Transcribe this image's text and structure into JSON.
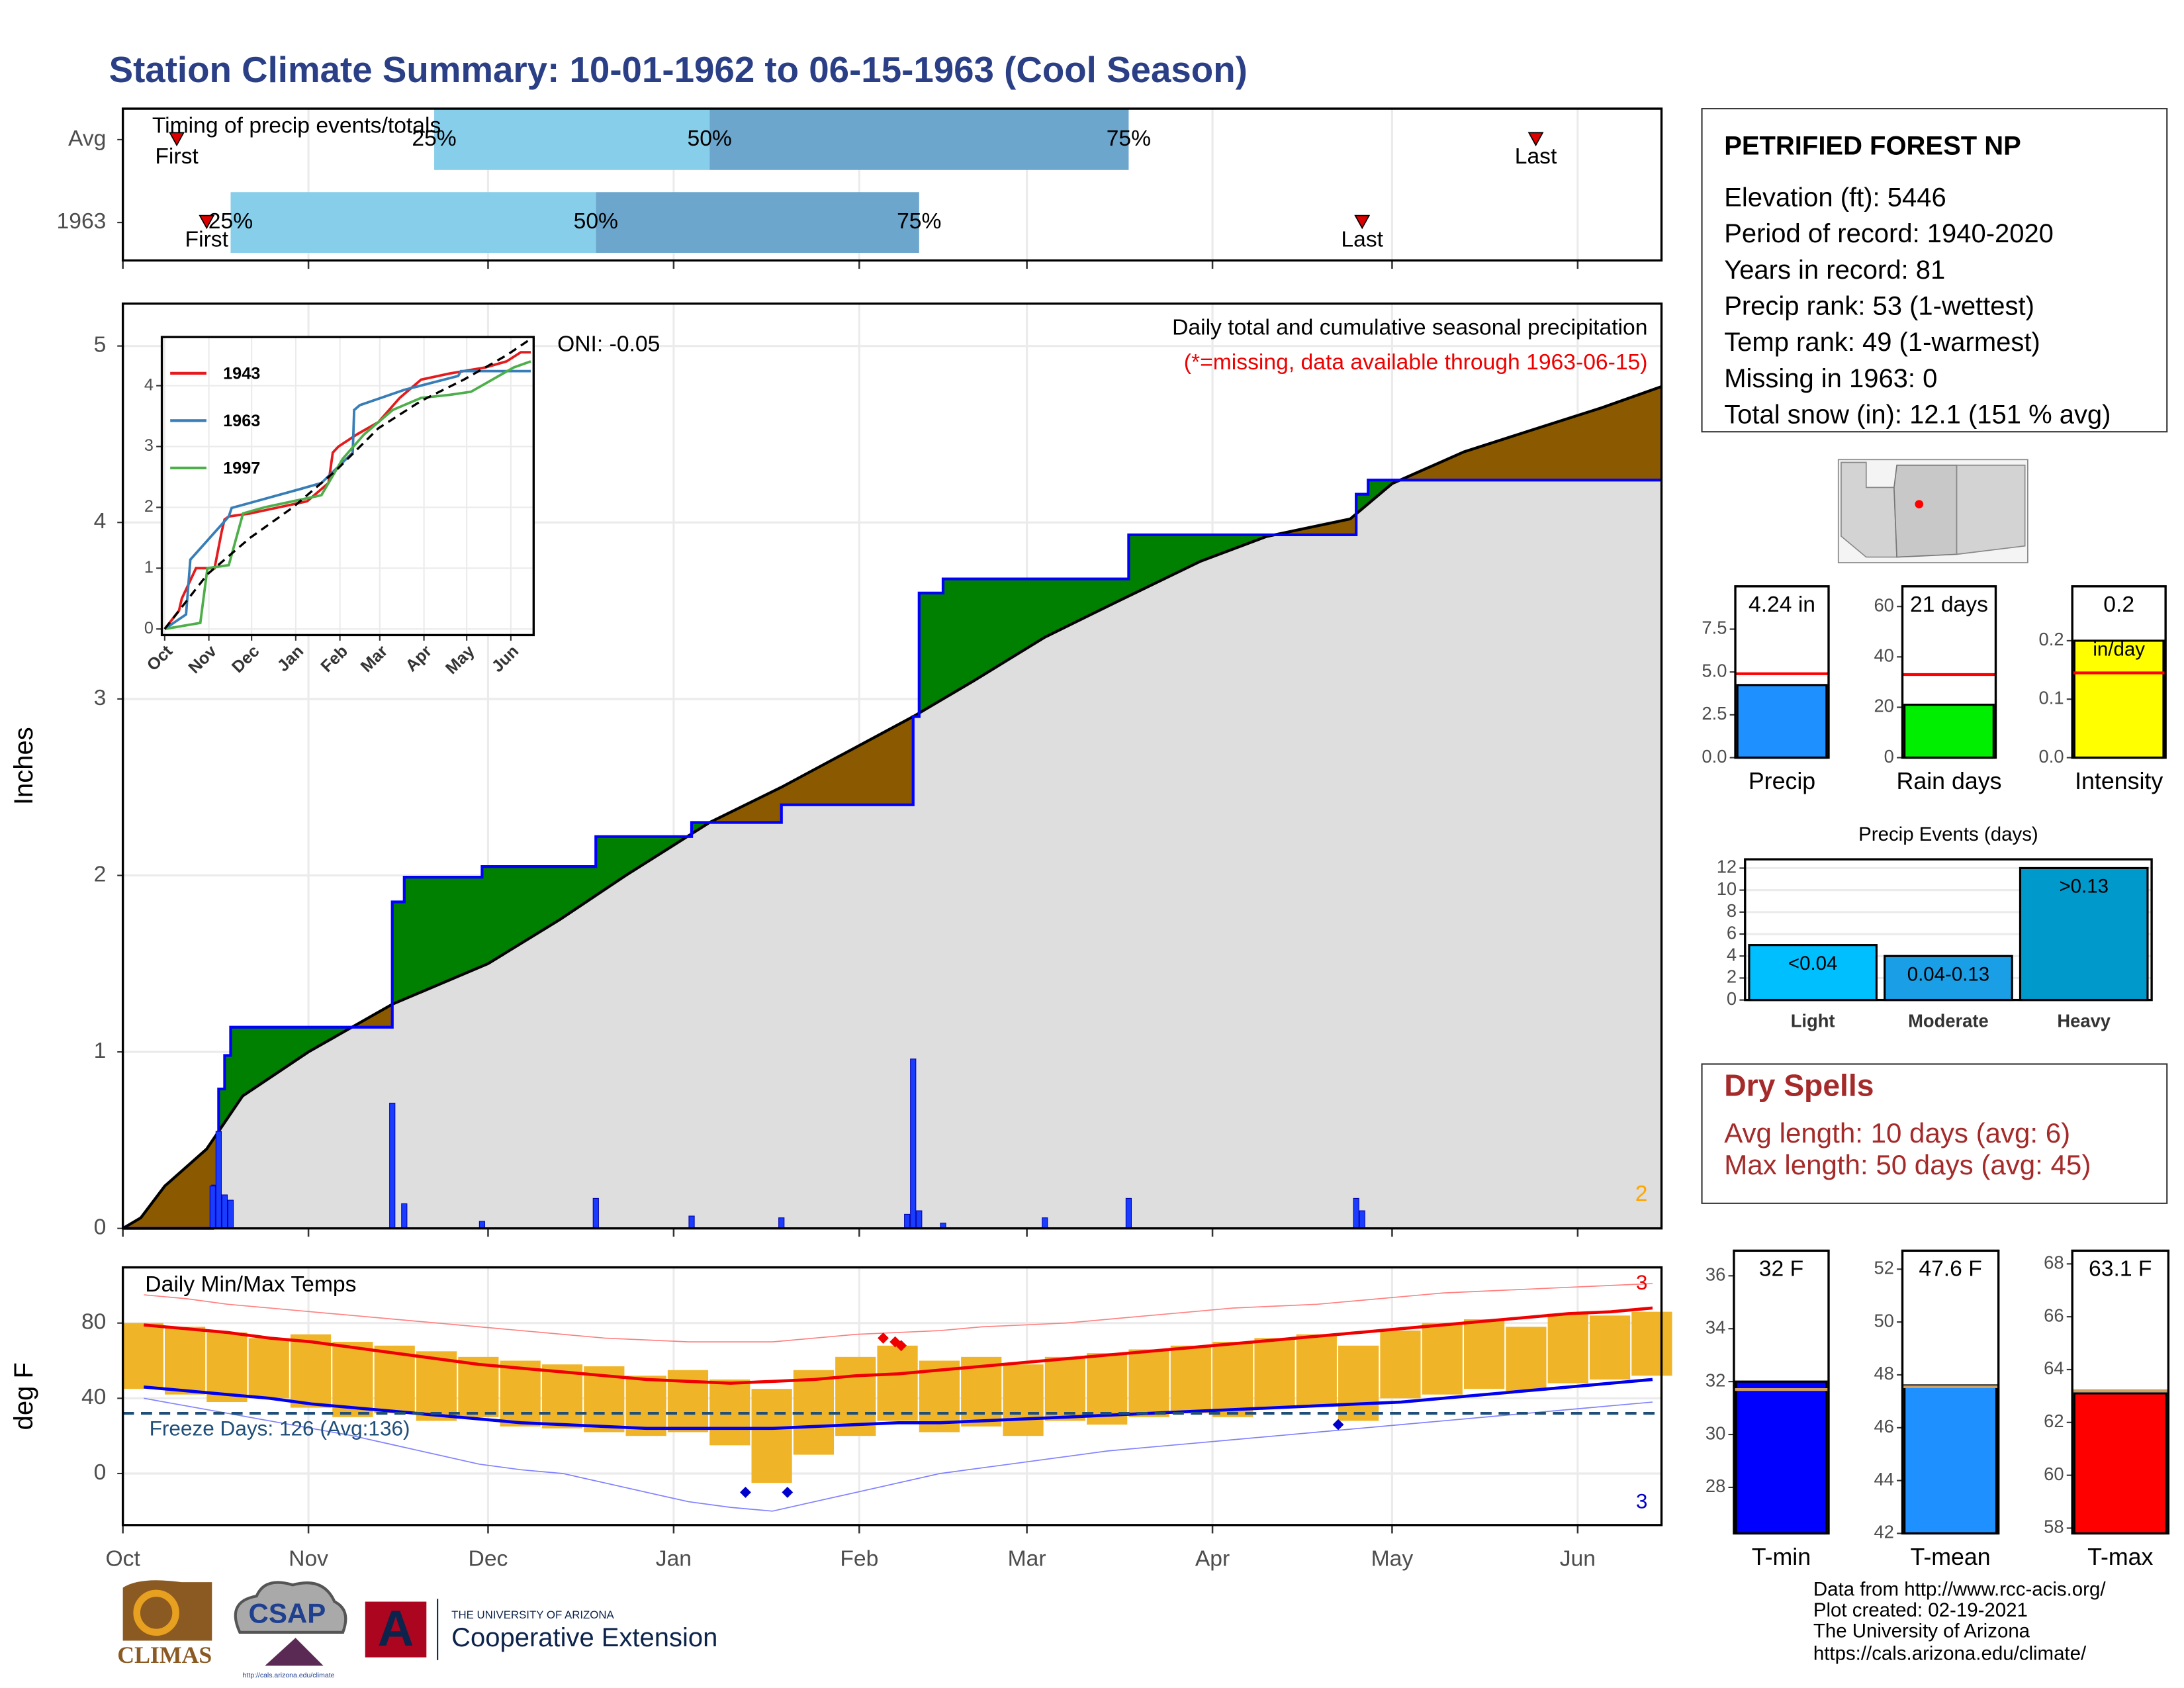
{
  "title": "Station Climate Summary: 10-01-1962 to 06-15-1963 (Cool Season)",
  "station": {
    "name": "PETRIFIED FOREST NP",
    "lines": [
      "Elevation (ft): 5446",
      "Period of record: 1940-2020",
      "Years in record: 81",
      "Precip rank: 53 (1-wettest)",
      "Temp rank: 49 (1-warmest)",
      "Missing in 1963: 0",
      "Total snow (in): 12.1 (151 % avg)"
    ]
  },
  "dry_spells": {
    "title": "Dry Spells",
    "lines": [
      "Avg length: 10 days (avg: 6)",
      "Max length: 50 days (avg: 45)"
    ]
  },
  "footer": {
    "lines": [
      "Data from http://www.rcc-acis.org/",
      "Plot created: 02-19-2021",
      "The University of Arizona",
      "https://cals.arizona.edu/climate/"
    ]
  },
  "logos": {
    "climas": "CLIMAS",
    "csap": "CSAP",
    "csap_url": "http://cals.arizona.edu/climate",
    "ua_top": "THE UNIVERSITY OF ARIZONA",
    "ua_bottom": "Cooperative Extension"
  },
  "chart_data": [
    {
      "type": "timeline",
      "title": "Timing of precip events/totals",
      "xlim": [
        0,
        257
      ],
      "rows": [
        {
          "name": "Avg",
          "first": 9,
          "p25": 52,
          "p50": 98,
          "p75": 168,
          "last": 236
        },
        {
          "name": "1963",
          "first": 14,
          "p25": 18,
          "p50": 79,
          "p75": 133,
          "last": 207
        }
      ],
      "labels": {
        "first": "First",
        "p25": "25%",
        "p50": "50%",
        "p75": "75%",
        "last": "Last"
      },
      "colors": [
        "#87ceeb",
        "#6ca6cd"
      ],
      "marker_color": "#dd0000",
      "grid": true
    },
    {
      "type": "cumulative",
      "title": "Daily total and cumulative seasonal precipitation",
      "subtitle": "(*=missing, data available through 1963-06-15)",
      "annotation": "ONI: -0.05",
      "corner_label": "2",
      "y_label": "Inches",
      "xlim": [
        0,
        257
      ],
      "ylim": [
        0,
        5.24
      ],
      "yticks": [
        0,
        1,
        2,
        3,
        4,
        5
      ],
      "grid": true,
      "cumulative": {
        "color": "#0000ff",
        "x": [
          0,
          15,
          15,
          16,
          16,
          17,
          17,
          18,
          18,
          45,
          45,
          47,
          47,
          60,
          60,
          79,
          79,
          95,
          95,
          110,
          110,
          132,
          132,
          133,
          133,
          137,
          137,
          168,
          168,
          206,
          206,
          208,
          208,
          257
        ],
        "values": [
          0,
          0,
          0.24,
          0.24,
          0.79,
          0.79,
          0.98,
          0.98,
          1.14,
          1.14,
          1.85,
          1.85,
          1.99,
          1.99,
          2.05,
          2.05,
          2.22,
          2.22,
          2.3,
          2.3,
          2.4,
          2.4,
          2.9,
          2.9,
          3.6,
          3.6,
          3.68,
          3.68,
          3.93,
          3.93,
          4.16,
          4.16,
          4.24,
          4.24
        ]
      },
      "average": {
        "color": "#000000",
        "x": [
          0,
          3,
          7,
          14,
          20,
          31,
          45,
          61,
          73,
          84,
          98,
          110,
          132,
          142,
          154,
          166,
          180,
          191,
          205,
          212,
          224,
          235,
          247,
          257
        ],
        "values": [
          0,
          0.06,
          0.24,
          0.45,
          0.75,
          1.0,
          1.27,
          1.5,
          1.75,
          2.0,
          2.3,
          2.5,
          2.9,
          3.1,
          3.35,
          3.55,
          3.78,
          3.92,
          4.02,
          4.22,
          4.4,
          4.52,
          4.65,
          4.77
        ]
      },
      "daily": {
        "color": "#1a3cff",
        "x": [
          15,
          16,
          17,
          18,
          45,
          47,
          60,
          79,
          95,
          110,
          131,
          132,
          133,
          137,
          154,
          168,
          206,
          207
        ],
        "values": [
          0.24,
          0.55,
          0.19,
          0.16,
          0.71,
          0.14,
          0.04,
          0.17,
          0.07,
          0.06,
          0.08,
          0.96,
          0.1,
          0.03,
          0.06,
          0.17,
          0.17,
          0.1
        ]
      },
      "fill_colors": {
        "above": "#008000",
        "below": "#8b5a00",
        "base": "#dedede"
      }
    },
    {
      "type": "line",
      "xlim": [
        -2,
        259
      ],
      "ylim": [
        -0.1,
        4.8
      ],
      "yticks": [
        0,
        1,
        2,
        3,
        4
      ],
      "xticks": [
        {
          "value": 0,
          "label": "Oct"
        },
        {
          "value": 31,
          "label": "Nov"
        },
        {
          "value": 61,
          "label": "Dec"
        },
        {
          "value": 92,
          "label": "Jan"
        },
        {
          "value": 123,
          "label": "Feb"
        },
        {
          "value": 151,
          "label": "Mar"
        },
        {
          "value": 182,
          "label": "Apr"
        },
        {
          "value": 212,
          "label": "May"
        },
        {
          "value": 243,
          "label": "Jun"
        }
      ],
      "series": [
        {
          "name": "1943",
          "color": "#e41a1c",
          "x": [
            0,
            10,
            12,
            20,
            22,
            35,
            40,
            42,
            45,
            60,
            80,
            100,
            115,
            118,
            122,
            135,
            150,
            165,
            180,
            200,
            225,
            240,
            250,
            257
          ],
          "values": [
            0,
            0.3,
            0.5,
            0.9,
            1.0,
            1.0,
            1.6,
            1.8,
            1.85,
            1.9,
            2.0,
            2.1,
            2.4,
            2.9,
            3.0,
            3.2,
            3.4,
            3.8,
            4.1,
            4.2,
            4.3,
            4.4,
            4.55,
            4.55
          ]
        },
        {
          "name": "1963",
          "color": "#377eb8",
          "x": [
            0,
            15,
            18,
            45,
            47,
            95,
            110,
            132,
            133,
            137,
            168,
            206,
            208,
            257
          ],
          "values": [
            0,
            0.24,
            1.14,
            1.85,
            1.99,
            2.3,
            2.4,
            2.9,
            3.6,
            3.68,
            3.93,
            4.16,
            4.24,
            4.24
          ]
        },
        {
          "name": "1997",
          "color": "#4daf4a",
          "x": [
            0,
            25,
            30,
            45,
            55,
            70,
            90,
            110,
            125,
            140,
            160,
            180,
            200,
            215,
            230,
            245,
            257
          ],
          "values": [
            0,
            0.1,
            1.0,
            1.05,
            1.9,
            2.0,
            2.1,
            2.2,
            2.8,
            3.2,
            3.6,
            3.8,
            3.85,
            3.9,
            4.1,
            4.3,
            4.4
          ]
        }
      ],
      "average": {
        "color": "#000000",
        "x": [
          0,
          30,
          60,
          90,
          120,
          150,
          180,
          210,
          240,
          257
        ],
        "values": [
          0,
          0.9,
          1.5,
          2.0,
          2.6,
          3.3,
          3.75,
          4.1,
          4.5,
          4.77
        ]
      }
    },
    {
      "type": "range",
      "title": "Daily Min/Max Temps",
      "y_label": "deg F",
      "annotation": "Freeze Days: 126 (Avg:136)",
      "record_highs": 3,
      "record_lows": 3,
      "xlim": [
        0,
        257
      ],
      "ylim": [
        -27.4,
        109.6
      ],
      "yticks": [
        0,
        40,
        80
      ],
      "grid": true,
      "xticks": [
        {
          "value": 0,
          "label": "Oct"
        },
        {
          "value": 31,
          "label": "Nov"
        },
        {
          "value": 61,
          "label": "Dec"
        },
        {
          "value": 92,
          "label": "Jan"
        },
        {
          "value": 123,
          "label": "Feb"
        },
        {
          "value": 151,
          "label": "Mar"
        },
        {
          "value": 182,
          "label": "Apr"
        },
        {
          "value": 212,
          "label": "May"
        },
        {
          "value": 243,
          "label": "Jun"
        }
      ],
      "x": [
        0,
        7,
        14,
        21,
        28,
        35,
        42,
        49,
        56,
        63,
        70,
        77,
        84,
        91,
        98,
        105,
        112,
        119,
        126,
        133,
        140,
        147,
        154,
        161,
        168,
        175,
        182,
        189,
        196,
        203,
        210,
        217,
        224,
        231,
        238,
        245,
        252
      ],
      "max": [
        80,
        78,
        75,
        72,
        74,
        70,
        68,
        65,
        62,
        60,
        58,
        57,
        52,
        55,
        50,
        45,
        55,
        62,
        68,
        60,
        62,
        58,
        62,
        64,
        66,
        68,
        70,
        72,
        74,
        68,
        76,
        80,
        82,
        78,
        85,
        84,
        86
      ],
      "min": [
        45,
        42,
        38,
        40,
        35,
        30,
        32,
        28,
        30,
        25,
        24,
        22,
        20,
        22,
        15,
        -5,
        10,
        20,
        28,
        22,
        25,
        20,
        28,
        26,
        30,
        32,
        30,
        35,
        36,
        28,
        40,
        42,
        45,
        44,
        48,
        50,
        52
      ],
      "bar_color": "#f0b429",
      "series": [
        {
          "color": "#ee0000",
          "width": 2.2,
          "values": [
            79,
            77,
            75,
            72,
            70,
            67,
            64,
            61,
            58,
            56,
            54,
            52,
            50,
            49,
            48,
            49,
            50,
            52,
            53,
            55,
            57,
            59,
            61,
            63,
            65,
            67,
            69,
            71,
            73,
            75,
            77,
            79,
            81,
            83,
            85,
            86,
            88
          ]
        },
        {
          "color": "#0000ee",
          "width": 2.2,
          "values": [
            46,
            44,
            42,
            40,
            37,
            35,
            33,
            31,
            29,
            27,
            26,
            25,
            24,
            24,
            24,
            24,
            25,
            26,
            27,
            27,
            28,
            29,
            30,
            31,
            32,
            33,
            34,
            35,
            36,
            37,
            38,
            40,
            42,
            44,
            46,
            48,
            50
          ]
        },
        {
          "color": "#ff8080",
          "width": 0.8,
          "values": [
            95,
            93,
            90,
            88,
            86,
            84,
            82,
            80,
            78,
            76,
            74,
            72,
            71,
            70,
            70,
            70,
            72,
            74,
            75,
            76,
            78,
            79,
            80,
            82,
            84,
            86,
            88,
            89,
            90,
            92,
            94,
            96,
            97,
            98,
            99,
            100,
            101
          ]
        },
        {
          "color": "#8080ff",
          "width": 0.8,
          "values": [
            40,
            36,
            32,
            28,
            24,
            20,
            15,
            10,
            5,
            2,
            0,
            -5,
            -10,
            -15,
            -18,
            -20,
            -15,
            -10,
            -5,
            0,
            3,
            6,
            9,
            12,
            14,
            16,
            18,
            20,
            22,
            24,
            26,
            28,
            30,
            32,
            34,
            36,
            38
          ]
        }
      ],
      "freeze": 32,
      "freeze_color": "#1f4e79",
      "record_high_days": {
        "color": "#ee0000",
        "x": [
          127,
          129,
          130
        ],
        "values": [
          72,
          70,
          68
        ]
      },
      "record_low_days": {
        "color": "#0000cc",
        "x": [
          104,
          111,
          203
        ],
        "values": [
          -10,
          -10,
          26
        ]
      }
    },
    {
      "type": "bar",
      "categories": [
        "Precip"
      ],
      "values": [
        4.24
      ],
      "value_labels": [
        "4.24 in"
      ],
      "average": 4.9,
      "color": "#1e90ff",
      "average_color": "#ff0000",
      "ylim": [
        0,
        10
      ],
      "yticks": [
        {
          "value": 0,
          "label": "0.0"
        },
        2.5,
        {
          "value": 5,
          "label": "5.0"
        },
        7.5
      ]
    },
    {
      "type": "bar",
      "categories": [
        "Rain days"
      ],
      "values": [
        21
      ],
      "value_labels": [
        "21 days"
      ],
      "average": 33,
      "color": "#00ee00",
      "average_color": "#ff0000",
      "ylim": [
        0,
        68
      ],
      "yticks": [
        0,
        20,
        40,
        60
      ]
    },
    {
      "type": "bar",
      "categories": [
        "Intensity"
      ],
      "values": [
        0.2
      ],
      "unit": "in/day",
      "average": 0.145,
      "color": "#ffff00",
      "average_color": "#ff0000",
      "ylim": [
        0,
        0.293
      ],
      "yticks": [
        {
          "value": 0,
          "label": "0.0"
        },
        0.1,
        0.2
      ]
    },
    {
      "type": "bar",
      "title": "Precip Events (days)",
      "categories": [
        "Light",
        "Moderate",
        "Heavy"
      ],
      "values": [
        5,
        4,
        12
      ],
      "bin_labels": [
        "<0.04",
        "0.04-0.13",
        ">0.13"
      ],
      "colors": [
        "#00bfff",
        "#1a9ee6",
        "#0099cc"
      ],
      "grid": true,
      "ylim": [
        0,
        12.8
      ],
      "yticks": [
        0,
        2,
        4,
        6,
        8,
        10,
        12
      ]
    },
    {
      "type": "bar",
      "categories": [
        "T-min"
      ],
      "values": [
        32
      ],
      "value_labels": [
        "32 F"
      ],
      "average": 31.7,
      "color": "#0000ff",
      "average_color": "#d2a060",
      "ylim": [
        26.26,
        36.95
      ],
      "yticks": [
        28,
        30,
        32,
        34,
        36
      ]
    },
    {
      "type": "bar",
      "categories": [
        "T-mean"
      ],
      "values": [
        47.6
      ],
      "value_labels": [
        "47.6 F"
      ],
      "average": 47.55,
      "color": "#1e90ff",
      "average_color": "#d2a060",
      "ylim": [
        42,
        52.7
      ],
      "yticks": [
        42,
        44,
        46,
        48,
        50,
        52
      ]
    },
    {
      "type": "bar",
      "categories": [
        "T-max"
      ],
      "values": [
        63.1
      ],
      "value_labels": [
        "63.1 F"
      ],
      "average": 63.2,
      "color": "#ff0000",
      "average_color": "#d2a060",
      "ylim": [
        57.8,
        68.5
      ],
      "yticks": [
        58,
        60,
        62,
        64,
        66,
        68
      ]
    }
  ]
}
